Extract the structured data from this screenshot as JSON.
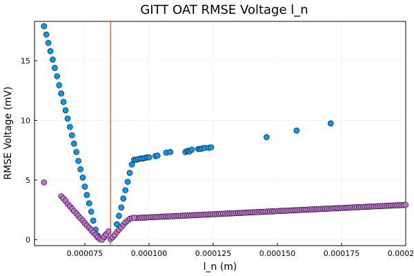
{
  "chart_data": {
    "type": "scatter",
    "title": "GITT OAT RMSE Voltage l_n",
    "xlabel": "l_n (m)",
    "ylabel": "RMSE Voltage (mV)",
    "xlim": [
      5.54e-05,
      0.0002
    ],
    "ylim": [
      -0.5,
      18.3
    ],
    "xticks": [
      7.5e-05,
      0.0001,
      0.000125,
      0.00015,
      0.000175,
      0.0002
    ],
    "xtick_labels": [
      "0.000075",
      "0.000100",
      "0.000125",
      "0.000150",
      "0.000175",
      "0.000200"
    ],
    "yticks": [
      0,
      5,
      10,
      15
    ],
    "ytick_labels": [
      "0",
      "5",
      "10",
      "15"
    ],
    "grid": true,
    "legend": "none",
    "vline": {
      "x": 8.5e-05,
      "color": "#e26f46"
    },
    "series": [
      {
        "color": "#009af9",
        "x": [
          5.91e-05,
          6e-05,
          6.08e-05,
          6.16e-05,
          6.25e-05,
          6.33e-05,
          6.42e-05,
          6.5e-05,
          6.58e-05,
          6.67e-05,
          6.75e-05,
          6.83e-05,
          6.92e-05,
          7e-05,
          7.08e-05,
          7.17e-05,
          7.25e-05,
          7.33e-05,
          7.42e-05,
          7.5e-05,
          7.58e-05,
          7.67e-05,
          7.75e-05,
          7.83e-05,
          7.92e-05,
          8e-05,
          8.25e-05,
          8.33e-05,
          8.75e-05,
          8.83e-05,
          8.92e-05,
          9e-05,
          9.08e-05,
          9.17e-05,
          9.25e-05,
          9.33e-05,
          9.42e-05,
          9.5e-05,
          9.58e-05,
          9.67e-05,
          9.75e-05,
          9.83e-05,
          9.92e-05,
          0.0001,
          0.0001025,
          0.0001033,
          0.0001067,
          0.0001083,
          0.0001142,
          0.000115,
          0.0001158,
          0.0001167,
          0.0001192,
          0.00012,
          0.0001208,
          0.0001217,
          0.0001233,
          0.0001242,
          0.0001458,
          0.0001575,
          0.0001708
        ],
        "y": [
          17.9,
          17.2,
          16.5,
          15.8,
          15.1,
          14.4,
          13.7,
          12.95,
          12.25,
          11.55,
          10.85,
          10.15,
          9.45,
          8.75,
          8.05,
          7.35,
          6.6,
          5.9,
          5.2,
          4.45,
          3.75,
          3.05,
          2.35,
          1.6,
          0.85,
          0.35,
          0.2,
          0.45,
          1.3,
          2.0,
          2.7,
          3.45,
          4.15,
          4.85,
          5.6,
          6.3,
          6.7,
          6.7,
          6.75,
          6.8,
          6.8,
          6.85,
          6.9,
          6.9,
          7.0,
          7.05,
          7.3,
          7.35,
          7.35,
          7.45,
          7.4,
          7.55,
          7.6,
          7.6,
          7.65,
          7.7,
          7.7,
          7.75,
          8.6,
          9.15,
          9.75
        ]
      },
      {
        "color": "#c271d2",
        "x": [
          5.91e-05,
          6.58e-05,
          6.67e-05,
          6.75e-05,
          6.83e-05,
          6.92e-05,
          7e-05,
          7.08e-05,
          7.17e-05,
          7.25e-05,
          7.33e-05,
          7.42e-05,
          7.5e-05,
          7.58e-05,
          7.67e-05,
          7.75e-05,
          7.83e-05,
          7.92e-05,
          8e-05,
          8.08e-05,
          8.17e-05,
          8.25e-05,
          8.33e-05,
          8.42e-05,
          8.5e-05,
          8.58e-05,
          8.67e-05,
          8.75e-05,
          8.83e-05,
          8.92e-05,
          9e-05,
          9.08e-05,
          9.17e-05,
          9.25e-05,
          9.33e-05,
          9.42e-05
        ],
        "y": [
          4.8,
          3.65,
          3.45,
          3.25,
          3.0,
          2.8,
          2.6,
          2.4,
          2.2,
          2.0,
          1.8,
          1.6,
          1.4,
          1.2,
          1.0,
          0.8,
          0.6,
          0.4,
          0.2,
          0.05,
          0.0,
          0.25,
          0.45,
          0.7,
          0.05,
          0.2,
          0.4,
          0.65,
          0.85,
          1.05,
          1.25,
          1.45,
          1.6,
          1.75,
          1.8,
          1.85
        ]
      }
    ],
    "dense_series": {
      "color": "#c271d2",
      "x_start": 9.5e-05,
      "x_end": 0.0002,
      "n": 128,
      "y_start": 1.82,
      "y_end": 2.92
    }
  }
}
